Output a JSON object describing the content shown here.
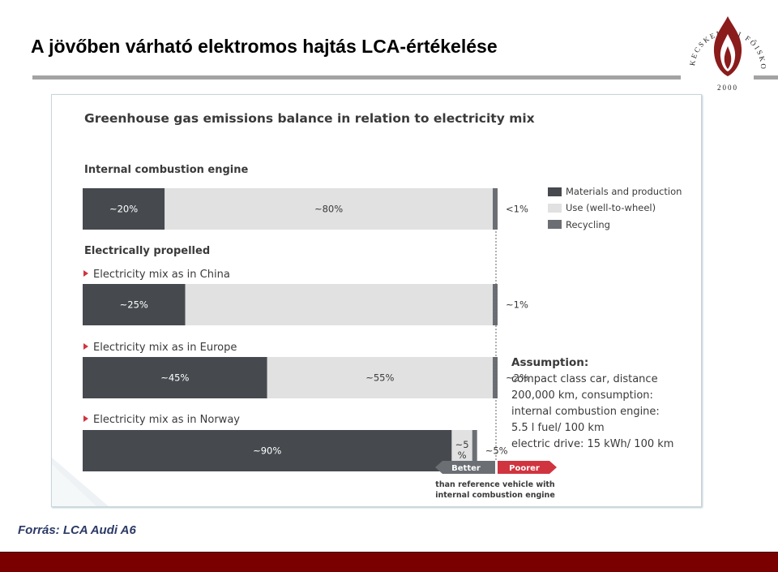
{
  "slide": {
    "title": "A jövőben várható elektromos hajtás LCA-értékelése",
    "source": "Forrás: LCA Audi A6",
    "logo": {
      "arc_text": "KECSKEMÉTI FŐISKOLA",
      "year": "2000",
      "icon": "flame-emblem-icon"
    }
  },
  "colors": {
    "materials": "#464a4f",
    "use": "#e1e1e1",
    "recycling": "#6b6f74",
    "better": "#6b6f74",
    "poorer": "#d0343f",
    "footer": "#7a0000"
  },
  "chart_data": {
    "type": "bar",
    "title": "Greenhouse gas emissions balance in relation to electricity mix",
    "orientation": "horizontal-stacked",
    "legend": {
      "placement": "top-right",
      "items": [
        "Materials and production",
        "Use (well-to-wheel)",
        "Recycling"
      ]
    },
    "groups": [
      {
        "label": "Internal combustion engine"
      },
      {
        "label": "Electrically propelled"
      }
    ],
    "bars": [
      {
        "category": "",
        "group": "Internal combustion engine",
        "materials": 20,
        "use": 80,
        "recycling": 1,
        "labels": {
          "materials": "~20%",
          "use": "~80%",
          "recycling": "<1%"
        }
      },
      {
        "category": "Electricity mix as in China",
        "group": "Electrically propelled",
        "materials": 25,
        "use": 75,
        "recycling": 1,
        "labels": {
          "materials": "~25%",
          "use": "",
          "recycling": "~1%"
        }
      },
      {
        "category": "Electricity mix as in Europe",
        "group": "Electrically propelled",
        "materials": 45,
        "use": 55,
        "recycling": 2,
        "labels": {
          "materials": "~45%",
          "use": "~55%",
          "recycling": "~2%"
        }
      },
      {
        "category": "Electricity mix as in Norway",
        "group": "Electrically propelled",
        "materials": 90,
        "use": 5,
        "recycling": 5,
        "labels": {
          "materials": "~90%",
          "use": "~5 %",
          "recycling": "~5%"
        }
      }
    ],
    "reference": {
      "better_label": "Better",
      "poorer_label": "Poorer",
      "caption_line1": "than reference vehicle with",
      "caption_line2": "internal combustion engine"
    },
    "assumption": {
      "heading": "Assumption:",
      "lines": [
        "compact class car, distance",
        "200,000 km, consumption:",
        "internal combustion engine:",
        "5.5 l fuel/ 100 km",
        "electric drive: 15 kWh/ 100 km"
      ]
    }
  }
}
